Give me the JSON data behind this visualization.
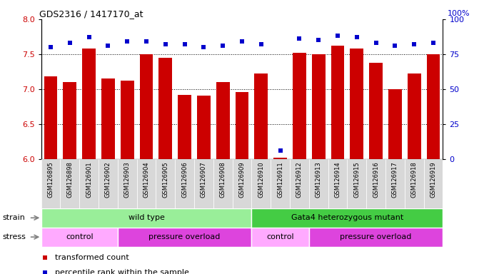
{
  "title": "GDS2316 / 1417170_at",
  "samples": [
    "GSM126895",
    "GSM126898",
    "GSM126901",
    "GSM126902",
    "GSM126903",
    "GSM126904",
    "GSM126905",
    "GSM126906",
    "GSM126907",
    "GSM126908",
    "GSM126909",
    "GSM126910",
    "GSM126911",
    "GSM126912",
    "GSM126913",
    "GSM126914",
    "GSM126915",
    "GSM126916",
    "GSM126917",
    "GSM126918",
    "GSM126919"
  ],
  "bar_values": [
    7.18,
    7.1,
    7.58,
    7.15,
    7.12,
    7.5,
    7.45,
    6.92,
    6.91,
    7.1,
    6.96,
    7.22,
    6.02,
    7.52,
    7.5,
    7.62,
    7.58,
    7.38,
    7.0,
    7.22,
    7.5
  ],
  "percentile_values": [
    80,
    83,
    87,
    81,
    84,
    84,
    82,
    82,
    80,
    81,
    84,
    82,
    6,
    86,
    85,
    88,
    87,
    83,
    81,
    82,
    83
  ],
  "bar_color": "#cc0000",
  "percentile_color": "#0000cc",
  "ylim_left": [
    6.0,
    8.0
  ],
  "ylim_right": [
    0,
    100
  ],
  "yticks_left": [
    6.0,
    6.5,
    7.0,
    7.5,
    8.0
  ],
  "yticks_right": [
    0,
    25,
    50,
    75,
    100
  ],
  "grid_values": [
    6.5,
    7.0,
    7.5
  ],
  "strain_groups": [
    {
      "label": "wild type",
      "start": 0,
      "end": 11,
      "color": "#99ee99"
    },
    {
      "label": "Gata4 heterozygous mutant",
      "start": 11,
      "end": 21,
      "color": "#44cc44"
    }
  ],
  "stress_groups": [
    {
      "label": "control",
      "start": 0,
      "end": 4,
      "color": "#ffaaff"
    },
    {
      "label": "pressure overload",
      "start": 4,
      "end": 11,
      "color": "#dd44dd"
    },
    {
      "label": "control",
      "start": 11,
      "end": 14,
      "color": "#ffaaff"
    },
    {
      "label": "pressure overload",
      "start": 14,
      "end": 21,
      "color": "#dd44dd"
    }
  ],
  "legend_items": [
    {
      "label": "transformed count",
      "color": "#cc0000",
      "marker": "s"
    },
    {
      "label": "percentile rank within the sample",
      "color": "#0000cc",
      "marker": "s"
    }
  ],
  "bg_color": "#ffffff",
  "strain_label": "strain",
  "stress_label": "stress",
  "xtick_bg": "#d8d8d8"
}
